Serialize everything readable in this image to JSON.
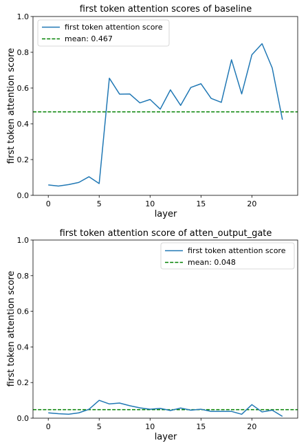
{
  "chart_data": [
    {
      "type": "line",
      "title": "first token attention scores of baseline",
      "xlabel": "layer",
      "ylabel": "first token attention score",
      "xlim": [
        -1.5,
        24.5
      ],
      "ylim": [
        0.0,
        1.0
      ],
      "x_ticks": [
        0,
        5,
        10,
        15,
        20
      ],
      "y_ticks": [
        0.0,
        0.2,
        0.4,
        0.6,
        0.8,
        1.0
      ],
      "y_tick_labels": [
        "0.0",
        "0.2",
        "0.4",
        "0.6",
        "0.8",
        "1.0"
      ],
      "legend_position": "top-left",
      "series": [
        {
          "name": "first token attention score",
          "color": "#1f77b4",
          "style": "solid",
          "x": [
            0,
            1,
            2,
            3,
            4,
            5,
            6,
            7,
            8,
            9,
            10,
            11,
            12,
            13,
            14,
            15,
            16,
            17,
            18,
            19,
            20,
            21,
            22,
            23
          ],
          "values": [
            0.058,
            0.052,
            0.06,
            0.072,
            0.104,
            0.066,
            0.655,
            0.566,
            0.567,
            0.517,
            0.536,
            0.482,
            0.59,
            0.503,
            0.603,
            0.624,
            0.542,
            0.52,
            0.758,
            0.567,
            0.786,
            0.848,
            0.712,
            0.423
          ]
        }
      ],
      "hlines": [
        {
          "name": "mean: 0.467",
          "value": 0.467,
          "color": "#008000",
          "style": "dashed"
        }
      ]
    },
    {
      "type": "line",
      "title": "first token attention score of atten_output_gate",
      "xlabel": "layer",
      "ylabel": "first token attention score",
      "xlim": [
        -1.5,
        24.5
      ],
      "ylim": [
        0.0,
        1.0
      ],
      "x_ticks": [
        0,
        5,
        10,
        15,
        20
      ],
      "y_ticks": [
        0.0,
        0.2,
        0.4,
        0.6,
        0.8,
        1.0
      ],
      "y_tick_labels": [
        "0.0",
        "0.2",
        "0.4",
        "0.6",
        "0.8",
        "1.0"
      ],
      "legend_position": "top-right",
      "series": [
        {
          "name": "first token attention score",
          "color": "#1f77b4",
          "style": "solid",
          "x": [
            0,
            1,
            2,
            3,
            4,
            5,
            6,
            7,
            8,
            9,
            10,
            11,
            12,
            13,
            14,
            15,
            16,
            17,
            18,
            19,
            20,
            21,
            22,
            23
          ],
          "values": [
            0.03,
            0.025,
            0.022,
            0.03,
            0.05,
            0.1,
            0.08,
            0.085,
            0.07,
            0.058,
            0.05,
            0.055,
            0.043,
            0.057,
            0.045,
            0.05,
            0.038,
            0.038,
            0.038,
            0.022,
            0.076,
            0.035,
            0.045,
            0.01
          ]
        }
      ],
      "hlines": [
        {
          "name": "mean: 0.048",
          "value": 0.048,
          "color": "#008000",
          "style": "dashed"
        }
      ]
    }
  ]
}
